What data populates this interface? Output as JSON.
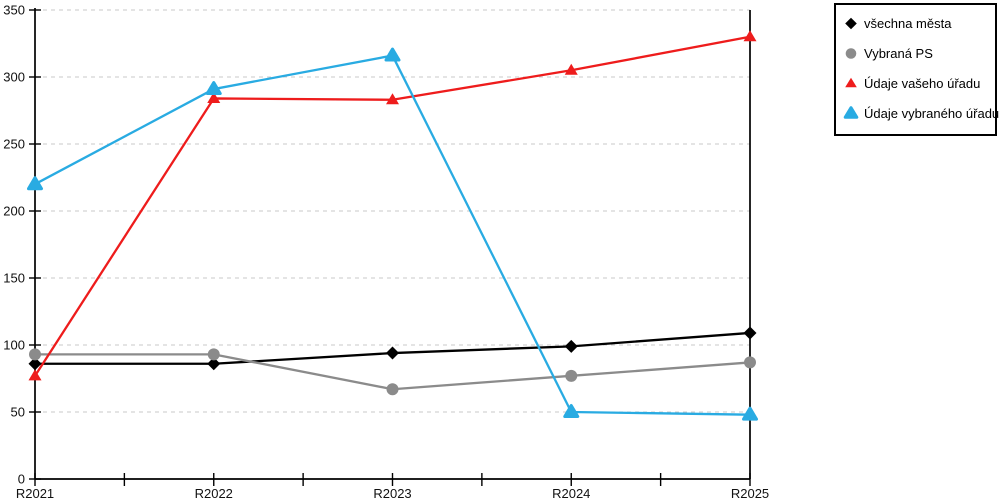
{
  "chart_data": {
    "type": "line",
    "title": "",
    "xlabel": "",
    "ylabel": "",
    "categories": [
      "R2021",
      "R2022",
      "R2023",
      "R2024",
      "R2025"
    ],
    "series": [
      {
        "name": "všechna města",
        "marker": "diamond",
        "color": "#000000",
        "values": [
          86,
          86,
          94,
          99,
          109
        ]
      },
      {
        "name": "Vybraná PS",
        "marker": "circle",
        "color": "#8b8b8b",
        "values": [
          93,
          93,
          67,
          77,
          87
        ]
      },
      {
        "name": "Údaje vašeho úřadu",
        "marker": "triangle",
        "color": "#ee1c1c",
        "values": [
          77,
          284,
          283,
          305,
          330
        ]
      },
      {
        "name": "Údaje vybraného úřadu",
        "marker": "triangle-rounded",
        "color": "#29abe2",
        "values": [
          220,
          291,
          316,
          50,
          48
        ]
      }
    ],
    "ylim": [
      0,
      350
    ],
    "y_ticks": [
      0,
      50,
      100,
      150,
      200,
      250,
      300,
      350
    ],
    "grid": "dashed horizontal",
    "grid_color": "#c9c9c9",
    "axis_color": "#000000",
    "legend_position": "top-right"
  }
}
